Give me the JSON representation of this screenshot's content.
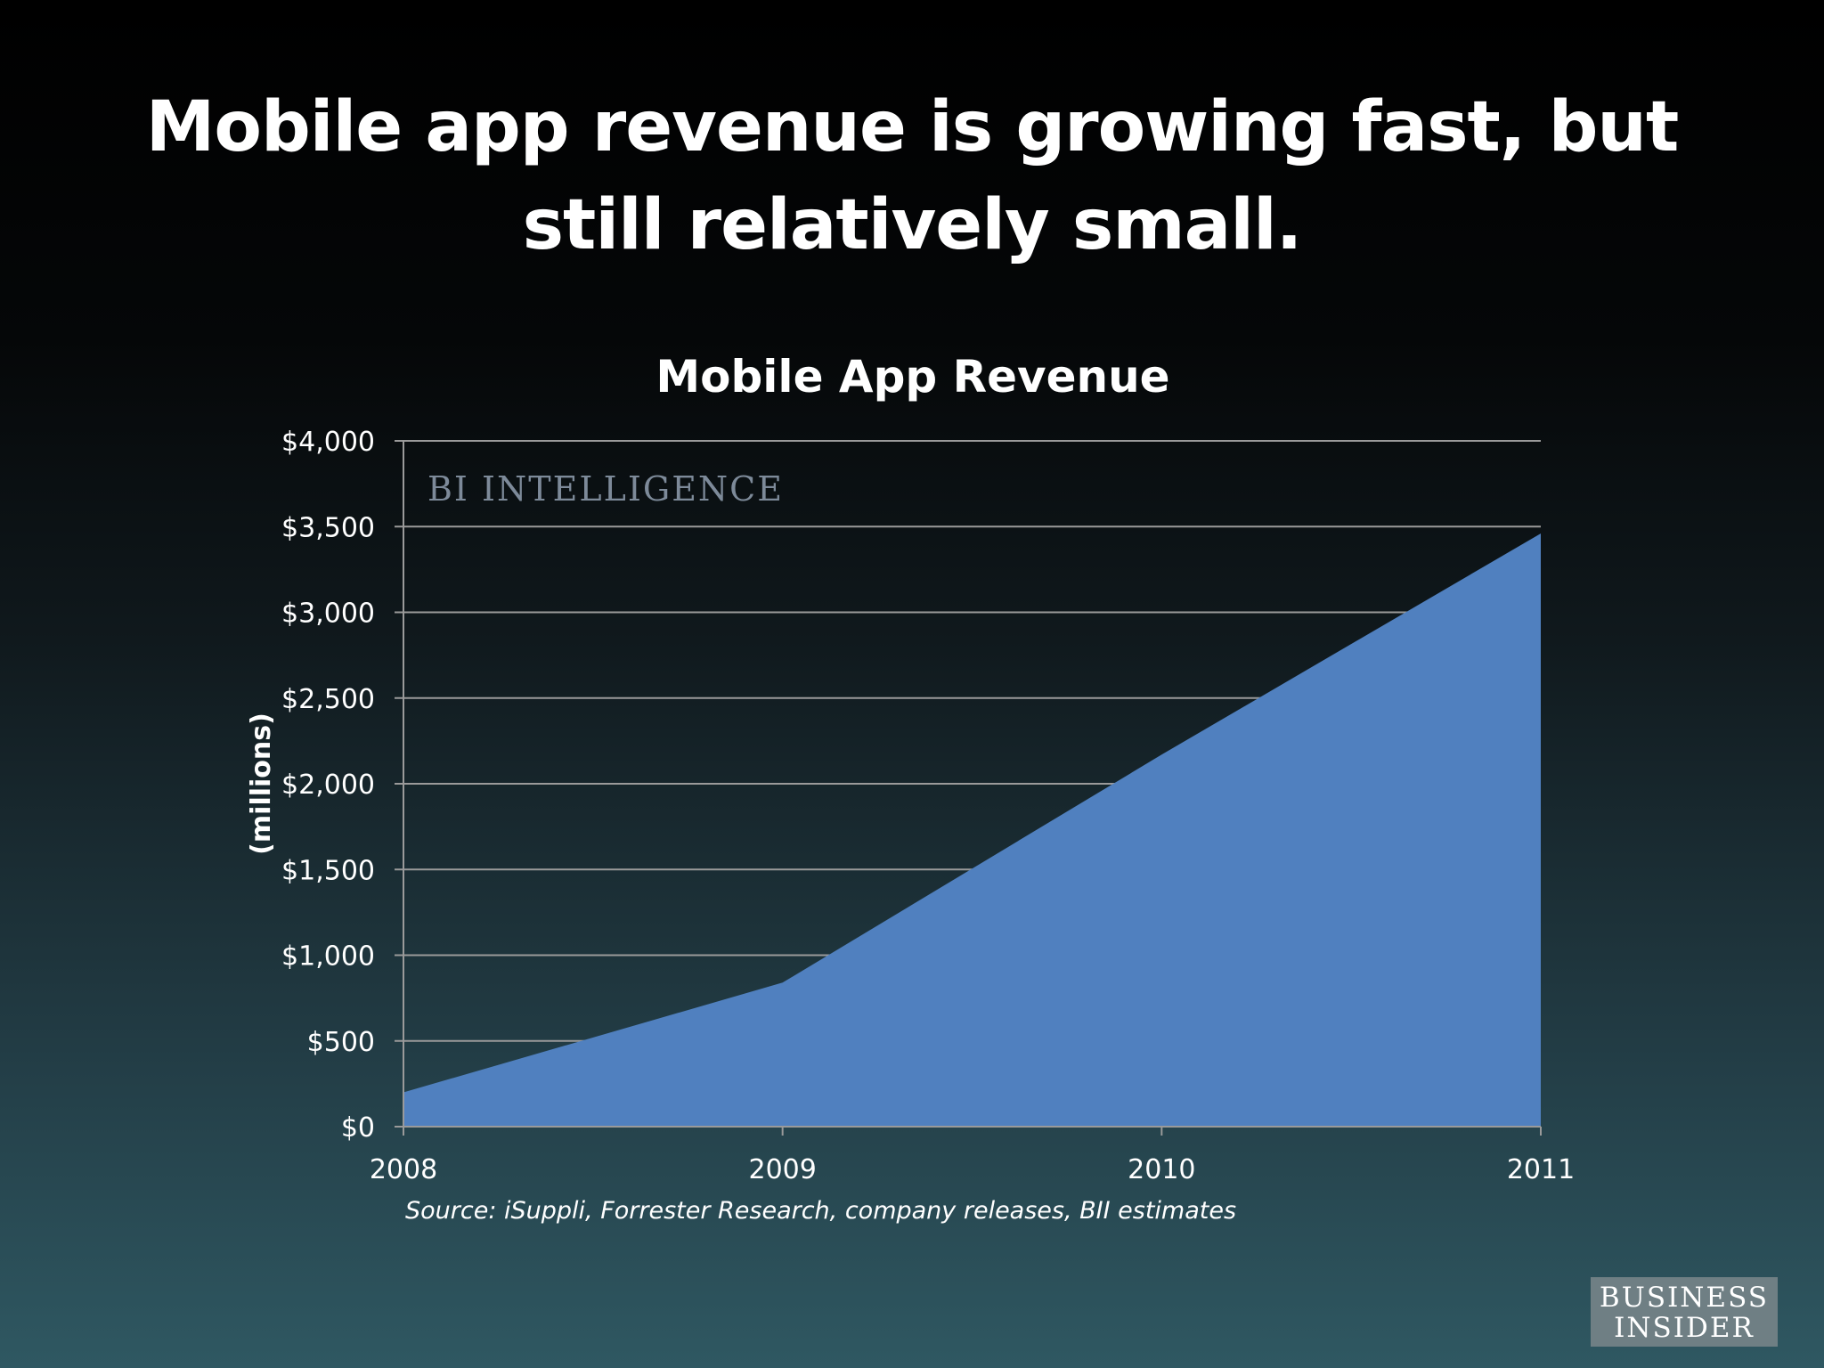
{
  "slide": {
    "title_line1": "Mobile app revenue is growing fast, but",
    "title_line2": "still relatively small."
  },
  "chart_data": {
    "type": "area",
    "title": "Mobile App Revenue",
    "ylabel": "(millions)",
    "xlabel": "",
    "x": [
      "2008",
      "2009",
      "2010",
      "2011"
    ],
    "series": [
      {
        "values": [
          200,
          840,
          2170,
          3460
        ]
      }
    ],
    "ylim": [
      0,
      4000
    ],
    "yticks": [
      0,
      500,
      1000,
      1500,
      2000,
      2500,
      3000,
      3500,
      4000
    ],
    "ytick_labels": [
      "$0",
      "$500",
      "$1,000",
      "$1,500",
      "$2,000",
      "$2,500",
      "$3,000",
      "$3,500",
      "$4,000"
    ],
    "grid": true,
    "watermark": "BI INTELLIGENCE",
    "source": "Source: iSuppli, Forrester Research, company releases, BII estimates",
    "fill_color": "#5080bf"
  },
  "brand": {
    "line1": "BUSINESS",
    "line2": "INSIDER"
  }
}
